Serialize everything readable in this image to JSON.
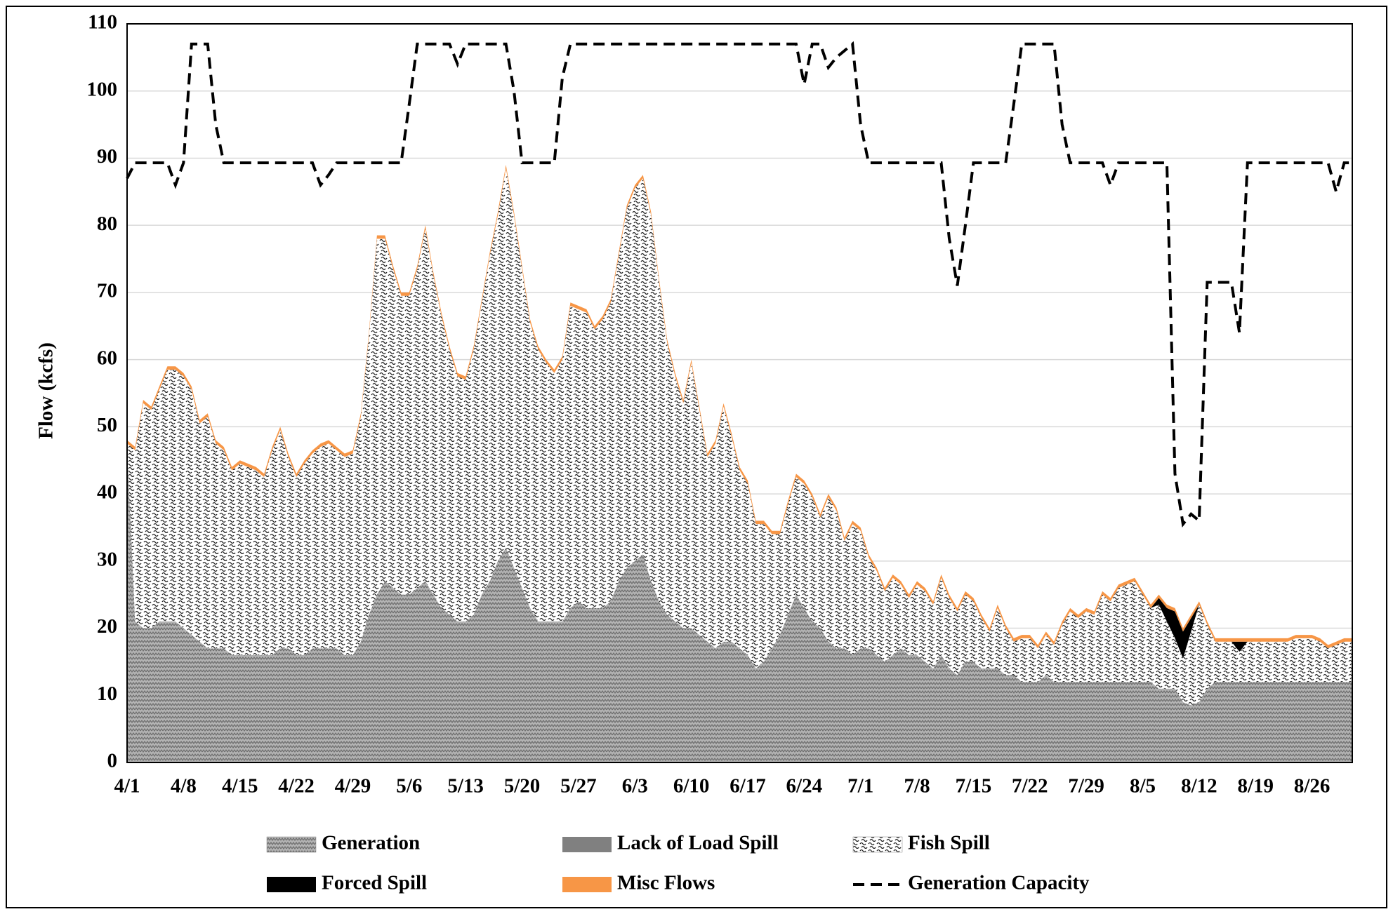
{
  "chart_data": {
    "type": "area",
    "y_label": "Flow  (kcfs)",
    "ylim": [
      0,
      110
    ],
    "yticks": [
      0,
      10,
      20,
      30,
      40,
      50,
      60,
      70,
      80,
      90,
      100,
      110
    ],
    "grid": true,
    "legend": "bottom",
    "categories": [
      "4/1",
      null,
      null,
      null,
      null,
      null,
      null,
      "4/8",
      null,
      null,
      null,
      null,
      null,
      null,
      "4/15",
      null,
      null,
      null,
      null,
      null,
      null,
      "4/22",
      null,
      null,
      null,
      null,
      null,
      null,
      "4/29",
      null,
      null,
      null,
      null,
      null,
      null,
      "5/6",
      null,
      null,
      null,
      null,
      null,
      null,
      "5/13",
      null,
      null,
      null,
      null,
      null,
      null,
      "5/20",
      null,
      null,
      null,
      null,
      null,
      null,
      "5/27",
      null,
      null,
      null,
      null,
      null,
      null,
      "6/3",
      null,
      null,
      null,
      null,
      null,
      null,
      "6/10",
      null,
      null,
      null,
      null,
      null,
      null,
      "6/17",
      null,
      null,
      null,
      null,
      null,
      null,
      "6/24",
      null,
      null,
      null,
      null,
      null,
      null,
      "7/1",
      null,
      null,
      null,
      null,
      null,
      null,
      "7/8",
      null,
      null,
      null,
      null,
      null,
      null,
      "7/15",
      null,
      null,
      null,
      null,
      null,
      null,
      "7/22",
      null,
      null,
      null,
      null,
      null,
      null,
      "7/29",
      null,
      null,
      null,
      null,
      null,
      null,
      "8/5",
      null,
      null,
      null,
      null,
      null,
      null,
      "8/12",
      null,
      null,
      null,
      null,
      null,
      null,
      "8/19",
      null,
      null,
      null,
      null,
      null,
      null,
      "8/26",
      null,
      null,
      null,
      null,
      null
    ],
    "series": [
      {
        "name": "Generation",
        "color": "#a6a6a6",
        "pattern": "hatch",
        "values": [
          47,
          21,
          20,
          20,
          21,
          21,
          21,
          20,
          19,
          18,
          17,
          17,
          17,
          16,
          16,
          16,
          16,
          16,
          16,
          17,
          17,
          16,
          16,
          17,
          17,
          17,
          17,
          16,
          16,
          18,
          22,
          25,
          27,
          26,
          25,
          25,
          26,
          27,
          25,
          23,
          22,
          21,
          21,
          22,
          25,
          27,
          30,
          32,
          29,
          26,
          23,
          21,
          21,
          21,
          21,
          23,
          24,
          23,
          23,
          23,
          24,
          27,
          29,
          30,
          31,
          27,
          24,
          22,
          21,
          20,
          20,
          19,
          18,
          17,
          18,
          18,
          17,
          16,
          14,
          15,
          17,
          19,
          22,
          25,
          23,
          21,
          20,
          18,
          17,
          17,
          16,
          17,
          17,
          16,
          15,
          16,
          17,
          16,
          16,
          15,
          14,
          16,
          14,
          13,
          15,
          15,
          14,
          14,
          14,
          13,
          13,
          12,
          12,
          12,
          13,
          12,
          12,
          12,
          12,
          12,
          12,
          12,
          12,
          12,
          12,
          12,
          12,
          12,
          11,
          11,
          11,
          9,
          8.5,
          9,
          11,
          12,
          12,
          12,
          12,
          12,
          12,
          12,
          12,
          12,
          12,
          12,
          12,
          12,
          12,
          12,
          12,
          12,
          12
        ]
      },
      {
        "name": "Lack of Load Spill",
        "color": "#808080",
        "values": [
          0,
          0,
          0,
          0,
          0,
          0,
          0,
          0,
          0,
          0,
          0,
          0,
          0,
          0,
          0,
          0,
          0,
          0,
          0,
          0,
          0,
          0,
          0,
          0,
          0,
          0,
          0,
          0,
          0,
          0,
          0,
          0,
          0,
          0,
          0,
          0,
          0,
          0,
          0,
          0,
          0,
          0,
          0,
          0,
          0,
          0,
          0,
          0,
          0,
          0,
          0,
          0,
          0,
          0,
          0,
          0,
          0,
          0,
          0,
          0,
          0,
          0,
          0,
          0,
          0,
          0,
          0,
          0,
          0,
          0,
          0,
          0,
          0,
          0,
          0,
          0,
          0,
          0,
          0,
          0,
          0,
          0,
          0,
          0,
          0,
          0,
          0,
          0,
          0,
          0,
          0,
          0,
          0,
          0,
          0,
          0,
          0,
          0,
          0,
          0,
          0,
          0,
          0,
          0,
          0,
          0,
          0,
          0,
          0,
          0,
          0,
          0,
          0,
          0,
          0,
          0,
          0,
          0,
          0,
          0,
          0,
          0,
          0,
          0,
          0,
          0,
          0,
          0,
          0,
          0,
          0,
          0,
          0,
          0,
          0,
          0,
          0,
          0,
          0,
          0,
          0,
          0,
          0,
          0,
          0,
          0,
          0,
          0,
          0,
          0,
          0,
          0,
          0
        ]
      },
      {
        "name": "Fish Spill",
        "color": "#ffffff",
        "pattern": "squiggle",
        "values": [
          0.5,
          25.5,
          33.5,
          32.5,
          34.5,
          37.5,
          37.5,
          37.5,
          36.5,
          32.5,
          34.5,
          30.5,
          29.5,
          27.5,
          28.5,
          28,
          27.5,
          26.5,
          30.5,
          32.5,
          28.5,
          26.5,
          28.5,
          29,
          30,
          30.5,
          29.5,
          29.5,
          30,
          33.5,
          41.5,
          53,
          51,
          47.5,
          44.5,
          44.5,
          47.5,
          52.5,
          47.5,
          43.5,
          39.5,
          36.5,
          36,
          39.5,
          43.5,
          48.5,
          51.5,
          56.5,
          52.5,
          47.5,
          42.5,
          40.5,
          38.5,
          37,
          39,
          45,
          43.5,
          44,
          41.5,
          43,
          44.5,
          48.5,
          53.5,
          55.5,
          56,
          54.5,
          47.5,
          40.5,
          36.5,
          33.5,
          39.5,
          33.5,
          27.5,
          30.5,
          35,
          30.5,
          26.5,
          25.5,
          21.5,
          20.5,
          17,
          15,
          16.5,
          17.5,
          18.5,
          18.5,
          16.5,
          21.5,
          20.5,
          16,
          19.5,
          17.5,
          13.5,
          12.5,
          10.5,
          11.5,
          9.5,
          8.5,
          10.5,
          10.5,
          9.5,
          11.5,
          10.5,
          9.5,
          10,
          9,
          7.5,
          5.5,
          9,
          7,
          5,
          6.5,
          6.5,
          5,
          6,
          5.5,
          8.5,
          10.5,
          9.5,
          10.5,
          10,
          13,
          12,
          14,
          14.5,
          15,
          13,
          11,
          12.5,
          10,
          7.5,
          6.5,
          11,
          14.5,
          9.5,
          6,
          6,
          6,
          4.5,
          6,
          6,
          6,
          6,
          6,
          6,
          6.5,
          6.5,
          6.5,
          6,
          5,
          5.5,
          6,
          6
        ]
      },
      {
        "name": "Forced Spill",
        "color": "#000000",
        "values": [
          0,
          0,
          0,
          0,
          0,
          0,
          0,
          0,
          0,
          0,
          0,
          0,
          0,
          0,
          0,
          0,
          0,
          0,
          0,
          0,
          0,
          0,
          0,
          0,
          0,
          0,
          0,
          0,
          0,
          0,
          0,
          0,
          0,
          0,
          0,
          0,
          0,
          0,
          0,
          0,
          0,
          0,
          0,
          0,
          0,
          0,
          0,
          0,
          0,
          0,
          0,
          0,
          0,
          0,
          0,
          0,
          0,
          0,
          0,
          0,
          0,
          0,
          0,
          0,
          0,
          0,
          0,
          0,
          0,
          0,
          0,
          0,
          0,
          0,
          0,
          0,
          0,
          0,
          0,
          0,
          0,
          0,
          0,
          0,
          0,
          0,
          0,
          0,
          0,
          0,
          0,
          0,
          0,
          0,
          0,
          0,
          0,
          0,
          0,
          0,
          0,
          0,
          0,
          0,
          0,
          0,
          0,
          0,
          0,
          0,
          0,
          0,
          0,
          0,
          0,
          0,
          0,
          0,
          0,
          0,
          0,
          0,
          0,
          0,
          0,
          0,
          0,
          0,
          1,
          2,
          4,
          4,
          2,
          0,
          0,
          0,
          0,
          0,
          1.5,
          0,
          0,
          0,
          0,
          0,
          0,
          0,
          0,
          0,
          0,
          0,
          0,
          0,
          0
        ]
      },
      {
        "name": "Misc Flows",
        "color": "#f79646",
        "values": [
          0.5,
          0.5,
          0.5,
          0.5,
          0.5,
          0.5,
          0.5,
          0.5,
          0.5,
          0.5,
          0.5,
          0.5,
          0.5,
          0.5,
          0.5,
          0.5,
          0.5,
          0.5,
          0.5,
          0.5,
          0.5,
          0.5,
          0.5,
          0.5,
          0.5,
          0.5,
          0.5,
          0.5,
          0.5,
          0.5,
          0.5,
          0.5,
          0.5,
          0.5,
          0.5,
          0.5,
          0.5,
          0.5,
          0.5,
          0.5,
          0.5,
          0.5,
          0.5,
          0.5,
          0.5,
          0.5,
          0.5,
          0.5,
          0.5,
          0.5,
          0.5,
          0.5,
          0.5,
          0.5,
          0.5,
          0.5,
          0.5,
          0.5,
          0.5,
          0.5,
          0.5,
          0.5,
          0.5,
          0.5,
          0.5,
          0.5,
          0.5,
          0.5,
          0.5,
          0.5,
          0.5,
          0.5,
          0.5,
          0.5,
          0.5,
          0.5,
          0.5,
          0.5,
          0.5,
          0.5,
          0.5,
          0.5,
          0.5,
          0.5,
          0.5,
          0.5,
          0.5,
          0.5,
          0.5,
          0.5,
          0.5,
          0.5,
          0.5,
          0.5,
          0.5,
          0.5,
          0.5,
          0.5,
          0.5,
          0.5,
          0.5,
          0.5,
          0.5,
          0.5,
          0.5,
          0.5,
          0.5,
          0.5,
          0.5,
          0.5,
          0.5,
          0.5,
          0.5,
          0.5,
          0.5,
          0.5,
          0.5,
          0.5,
          0.5,
          0.5,
          0.5,
          0.5,
          0.5,
          0.5,
          0.5,
          0.5,
          0.5,
          0.5,
          0.5,
          0.5,
          0.5,
          0.5,
          0.5,
          0.5,
          0.5,
          0.5,
          0.5,
          0.5,
          0.5,
          0.5,
          0.5,
          0.5,
          0.5,
          0.5,
          0.5,
          0.5,
          0.5,
          0.5,
          0.5,
          0.5,
          0.5,
          0.5,
          0.5
        ]
      },
      {
        "name": "Generation Capacity",
        "color": "#000000",
        "type": "line",
        "dashed": true,
        "values": [
          87,
          89.3,
          89.3,
          89.3,
          89.3,
          89.3,
          86,
          89.3,
          107,
          107,
          107,
          95,
          89.3,
          89.3,
          89.3,
          89.3,
          89.3,
          89.3,
          89.3,
          89.3,
          89.3,
          89.3,
          89.3,
          89.3,
          86,
          87.5,
          89.3,
          89.3,
          89.3,
          89.3,
          89.3,
          89.3,
          89.3,
          89.3,
          89.3,
          98,
          107,
          107,
          107,
          107,
          107,
          104,
          107,
          107,
          107,
          107,
          107,
          107,
          100,
          89.3,
          89.3,
          89.3,
          89.3,
          89.3,
          102,
          107,
          107,
          107,
          107,
          107,
          107,
          107,
          107,
          107,
          107,
          107,
          107,
          107,
          107,
          107,
          107,
          107,
          107,
          107,
          107,
          107,
          107,
          107,
          107,
          107,
          107,
          107,
          107,
          107,
          101,
          107,
          107,
          103.5,
          105,
          106,
          107,
          95,
          89.3,
          89.3,
          89.3,
          89.3,
          89.3,
          89.3,
          89.3,
          89.3,
          89.3,
          89.3,
          78,
          71,
          80,
          89.3,
          89.3,
          89.3,
          89.3,
          89.3,
          98,
          107,
          107,
          107,
          107,
          107,
          95,
          89.3,
          89.3,
          89.3,
          89.3,
          89.3,
          86,
          89.3,
          89.3,
          89.3,
          89.3,
          89.3,
          89.3,
          89.3,
          43,
          35.5,
          37,
          36,
          71.5,
          71.5,
          71.5,
          71.5,
          64,
          89.3,
          89.3,
          89.3,
          89.3,
          89.3,
          89.3,
          89.3,
          89.3,
          89.3,
          89.3,
          89.3,
          85,
          89.3,
          89.3
        ]
      }
    ]
  }
}
